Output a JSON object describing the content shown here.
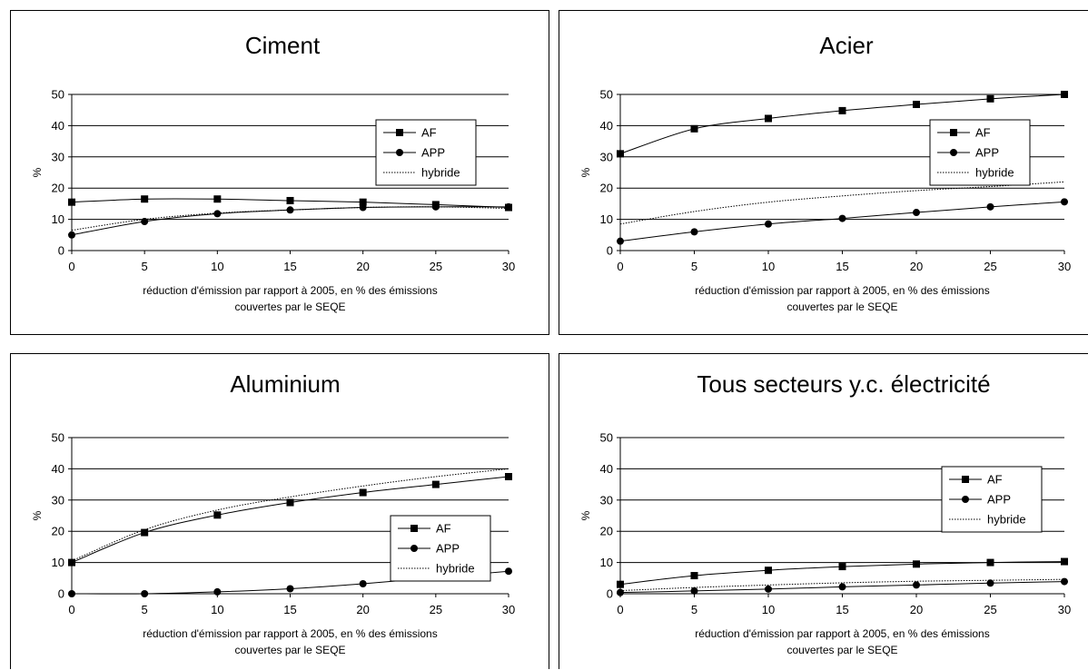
{
  "chart_data": [
    {
      "type": "line",
      "title": "Ciment",
      "xlabel_line1": "réduction d'émission par rapport à 2005, en % des émissions",
      "xlabel_line2": "couvertes par le SEQE",
      "ylabel": "%",
      "x": [
        0,
        5,
        10,
        15,
        20,
        25,
        30
      ],
      "ylim": [
        0,
        50
      ],
      "yticks": [
        0,
        10,
        20,
        30,
        40,
        50
      ],
      "grid": true,
      "legend": "right",
      "series": [
        {
          "name": "AF",
          "marker": "square",
          "style": "solid",
          "values": [
            15.5,
            16.5,
            16.5,
            16,
            15.5,
            14.7,
            13.8
          ]
        },
        {
          "name": "APP",
          "marker": "circle",
          "style": "solid",
          "values": [
            5,
            9.3,
            11.8,
            13,
            13.8,
            14,
            14
          ]
        },
        {
          "name": "hybride",
          "marker": "none",
          "style": "dotted",
          "values": [
            6.5,
            10,
            12,
            13,
            13.8,
            14,
            13.5
          ]
        }
      ]
    },
    {
      "type": "line",
      "title": "Acier",
      "xlabel_line1": "réduction d'émission par rapport à 2005, en % des émissions",
      "xlabel_line2": "couvertes par le SEQE",
      "ylabel": "%",
      "x": [
        0,
        5,
        10,
        15,
        20,
        25,
        30
      ],
      "ylim": [
        0,
        50
      ],
      "yticks": [
        0,
        10,
        20,
        30,
        40,
        50
      ],
      "grid": true,
      "legend": "right",
      "series": [
        {
          "name": "AF",
          "marker": "square",
          "style": "solid",
          "values": [
            31,
            39,
            42.3,
            44.8,
            46.8,
            48.6,
            50
          ]
        },
        {
          "name": "APP",
          "marker": "circle",
          "style": "solid",
          "values": [
            3,
            6,
            8.5,
            10.3,
            12.2,
            14,
            15.6
          ]
        },
        {
          "name": "hybride",
          "marker": "none",
          "style": "dotted",
          "values": [
            8.5,
            12.5,
            15.5,
            17.5,
            19.2,
            20.5,
            22
          ]
        }
      ]
    },
    {
      "type": "line",
      "title": "Aluminium",
      "xlabel_line1": "réduction d'émission par rapport à 2005, en % des émissions",
      "xlabel_line2": "couvertes par le SEQE",
      "ylabel": "%",
      "x": [
        0,
        5,
        10,
        15,
        20,
        25,
        30
      ],
      "ylim": [
        0,
        50
      ],
      "yticks": [
        0,
        10,
        20,
        30,
        40,
        50
      ],
      "grid": true,
      "legend": "right",
      "series": [
        {
          "name": "AF",
          "marker": "square",
          "style": "solid",
          "values": [
            10,
            19.6,
            25.2,
            29.2,
            32.4,
            35,
            37.5
          ]
        },
        {
          "name": "APP",
          "marker": "circle",
          "style": "solid",
          "values": [
            0,
            0,
            0.6,
            1.6,
            3.2,
            5.2,
            7.2
          ]
        },
        {
          "name": "hybride",
          "marker": "none",
          "style": "dotted",
          "values": [
            10.5,
            20.5,
            26.8,
            31,
            34.5,
            37.5,
            40
          ]
        }
      ]
    },
    {
      "type": "line",
      "title": "Tous secteurs y.c. électricité",
      "xlabel_line1": "réduction d'émission par rapport à 2005, en % des émissions",
      "xlabel_line2": "couvertes par le SEQE",
      "ylabel": "%",
      "x": [
        0,
        5,
        10,
        15,
        20,
        25,
        30
      ],
      "ylim": [
        0,
        50
      ],
      "yticks": [
        0,
        10,
        20,
        30,
        40,
        50
      ],
      "grid": true,
      "legend": "right",
      "series": [
        {
          "name": "AF",
          "marker": "square",
          "style": "solid",
          "values": [
            3,
            5.8,
            7.5,
            8.7,
            9.5,
            10,
            10.3
          ]
        },
        {
          "name": "APP",
          "marker": "circle",
          "style": "solid",
          "values": [
            0.4,
            0.9,
            1.5,
            2.2,
            2.8,
            3.4,
            3.9
          ]
        },
        {
          "name": "hybride",
          "marker": "none",
          "style": "dotted",
          "values": [
            1,
            2,
            2.8,
            3.5,
            4,
            4.3,
            4.6
          ]
        }
      ]
    }
  ]
}
